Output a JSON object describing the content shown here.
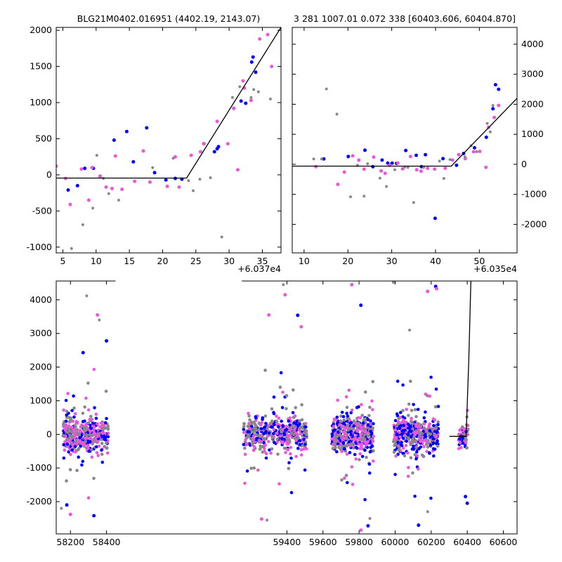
{
  "colors": {
    "grey": "#888888",
    "blue": "#0000ff",
    "pink": "#ee55dd",
    "model": "#000000"
  },
  "chart_data": [
    {
      "id": "zoom-left",
      "type": "scatter",
      "title": "BLG21M0402.016951 (4402.19, 2143.07)",
      "xlim": [
        4,
        37.8
      ],
      "ylim": [
        -1080,
        2040
      ],
      "x_offset_label": "+6.037e4",
      "xticks": [
        5,
        10,
        15,
        20,
        25,
        30,
        35
      ],
      "yticks": [
        -1000,
        -500,
        0,
        500,
        1000,
        1500,
        2000
      ],
      "model": [
        [
          4,
          -45
        ],
        [
          23.6,
          -45
        ],
        [
          37.8,
          2040
        ]
      ],
      "series": [
        {
          "color": "blue",
          "points": [
            [
              5.8,
              -210
            ],
            [
              7.2,
              -150
            ],
            [
              8.3,
              90
            ],
            [
              9.6,
              90
            ],
            [
              10.6,
              -20
            ],
            [
              12.7,
              480
            ],
            [
              14.6,
              600
            ],
            [
              15.6,
              180
            ],
            [
              17.6,
              650
            ],
            [
              18.8,
              30
            ],
            [
              20.5,
              -70
            ],
            [
              21.9,
              -50
            ],
            [
              22.9,
              -60
            ],
            [
              26.2,
              430
            ],
            [
              27.8,
              320
            ],
            [
              28.2,
              360
            ],
            [
              28.4,
              390
            ],
            [
              30.7,
              920
            ],
            [
              31.8,
              1020
            ],
            [
              32.5,
              990
            ],
            [
              33.4,
              1560
            ],
            [
              33.6,
              1630
            ],
            [
              34,
              1420
            ]
          ]
        },
        {
          "color": "pink",
          "points": [
            [
              4,
              120
            ],
            [
              5.4,
              -50
            ],
            [
              6.1,
              -410
            ],
            [
              7.8,
              80
            ],
            [
              8.9,
              -350
            ],
            [
              9.4,
              100
            ],
            [
              10.6,
              -20
            ],
            [
              11.5,
              -170
            ],
            [
              12.4,
              -190
            ],
            [
              12.9,
              260
            ],
            [
              13.9,
              -200
            ],
            [
              15.8,
              -90
            ],
            [
              17.1,
              330
            ],
            [
              18.1,
              -100
            ],
            [
              20.7,
              -160
            ],
            [
              21.9,
              250
            ],
            [
              22.5,
              -170
            ],
            [
              24.3,
              270
            ],
            [
              25.7,
              320
            ],
            [
              26.2,
              430
            ],
            [
              28.2,
              740
            ],
            [
              29.8,
              430
            ],
            [
              30.7,
              920
            ],
            [
              31.3,
              70
            ],
            [
              32.1,
              1300
            ],
            [
              32.3,
              1200
            ],
            [
              33.3,
              1030
            ],
            [
              34.6,
              1880
            ],
            [
              35.8,
              1940
            ],
            [
              36.4,
              1500
            ]
          ]
        },
        {
          "color": "grey",
          "points": [
            [
              6.3,
              -1020
            ],
            [
              8.0,
              -690
            ],
            [
              9.5,
              -460
            ],
            [
              10.1,
              270
            ],
            [
              11.1,
              -50
            ],
            [
              11.9,
              -260
            ],
            [
              13.4,
              -350
            ],
            [
              18.5,
              100
            ],
            [
              21.6,
              230
            ],
            [
              23.9,
              -80
            ],
            [
              24.6,
              -220
            ],
            [
              25.6,
              -60
            ],
            [
              27.2,
              -40
            ],
            [
              28.9,
              -860
            ],
            [
              30.5,
              1070
            ],
            [
              31.6,
              1220
            ],
            [
              33.3,
              1070
            ],
            [
              33.7,
              1180
            ],
            [
              34.4,
              1150
            ],
            [
              36.2,
              1050
            ]
          ]
        }
      ]
    },
    {
      "id": "zoom-right",
      "type": "scatter",
      "title": "3 281 1007.01 0.072 338 [60403.606, 60404.870]",
      "xlim": [
        7.3,
        58.6
      ],
      "ylim": [
        -2950,
        4560
      ],
      "x_offset_label": "+6.035e4",
      "xticks": [
        10,
        20,
        30,
        40,
        50
      ],
      "yticks": [
        -2000,
        -1000,
        0,
        1000,
        2000,
        3000,
        4000
      ],
      "model": [
        [
          7.3,
          -60
        ],
        [
          43.6,
          -60
        ],
        [
          58.6,
          2200
        ]
      ],
      "series": [
        {
          "color": "blue",
          "points": [
            [
              14.5,
              180
            ],
            [
              20.1,
              260
            ],
            [
              23.9,
              470
            ],
            [
              25.7,
              -80
            ],
            [
              27.8,
              140
            ],
            [
              29.1,
              40
            ],
            [
              30.1,
              40
            ],
            [
              31.1,
              30
            ],
            [
              33.2,
              460
            ],
            [
              35.6,
              300
            ],
            [
              36.8,
              -80
            ],
            [
              37.7,
              320
            ],
            [
              39.9,
              -1800
            ],
            [
              41.7,
              190
            ],
            [
              44.8,
              -30
            ],
            [
              46.4,
              360
            ],
            [
              48.9,
              550
            ],
            [
              51.6,
              900
            ],
            [
              53.1,
              1850
            ],
            [
              53.7,
              2650
            ],
            [
              54.4,
              2500
            ]
          ]
        },
        {
          "color": "pink",
          "points": [
            [
              12.7,
              -80
            ],
            [
              17.7,
              -670
            ],
            [
              19.2,
              -260
            ],
            [
              21.1,
              280
            ],
            [
              22.5,
              140
            ],
            [
              23.7,
              -160
            ],
            [
              25.9,
              240
            ],
            [
              27.6,
              -220
            ],
            [
              28.5,
              -300
            ],
            [
              29.5,
              -30
            ],
            [
              31.4,
              40
            ],
            [
              32.5,
              -150
            ],
            [
              34.3,
              260
            ],
            [
              35.7,
              -180
            ],
            [
              36.7,
              -230
            ],
            [
              38.2,
              -130
            ],
            [
              39.8,
              -160
            ],
            [
              42.2,
              -130
            ],
            [
              43.9,
              140
            ],
            [
              45.3,
              320
            ],
            [
              46.8,
              190
            ],
            [
              48.7,
              420
            ],
            [
              50.1,
              430
            ],
            [
              51.5,
              -100
            ],
            [
              52.1,
              1230
            ],
            [
              53.4,
              1560
            ],
            [
              54.4,
              1960
            ]
          ]
        },
        {
          "color": "grey",
          "points": [
            [
              12.2,
              180
            ],
            [
              14,
              180
            ],
            [
              15.1,
              2510
            ],
            [
              17.5,
              1670
            ],
            [
              20.6,
              -1080
            ],
            [
              22.2,
              -30
            ],
            [
              23.7,
              -1060
            ],
            [
              24.5,
              20
            ],
            [
              27.3,
              -460
            ],
            [
              28.8,
              -740
            ],
            [
              30.7,
              -180
            ],
            [
              33,
              -90
            ],
            [
              33.7,
              -100
            ],
            [
              35,
              -1270
            ],
            [
              37.3,
              -100
            ],
            [
              40.9,
              110
            ],
            [
              41.9,
              -470
            ],
            [
              43.3,
              160
            ],
            [
              46.7,
              250
            ],
            [
              48.1,
              620
            ],
            [
              49.4,
              420
            ],
            [
              51.8,
              1360
            ],
            [
              52.5,
              1080
            ],
            [
              53.1,
              1960
            ]
          ]
        }
      ]
    },
    {
      "id": "full",
      "type": "scatter",
      "title": "",
      "xlim": [
        58121,
        60676
      ],
      "ylim": [
        -2960,
        4560
      ],
      "xticks": [
        58200,
        58400,
        59400,
        59600,
        59800,
        60000,
        60200,
        60400,
        60600
      ],
      "yticks": [
        -2000,
        -1000,
        0,
        1000,
        2000,
        3000,
        4000
      ],
      "axis_break": [
        58450,
        59150
      ],
      "model": [
        [
          60301,
          -60
        ],
        [
          60393.6,
          -60
        ],
        [
          60408.6,
          2200
        ],
        [
          60420,
          4560
        ]
      ],
      "seasons": [
        [
          58160,
          58410
        ],
        [
          59160,
          59510
        ],
        [
          59650,
          59880
        ],
        [
          59990,
          60240
        ],
        [
          60352,
          60405
        ]
      ],
      "series": [
        {
          "color": "grey",
          "points": [
            [
              58290,
              4120
            ],
            [
              59380,
              4450
            ],
            [
              59990,
              4520
            ],
            [
              58360,
              3400
            ],
            [
              59860,
              -2500
            ],
            [
              59290,
              -2550
            ],
            [
              60180,
              -2300
            ],
            [
              58150,
              -2200
            ],
            [
              60080,
              3100
            ]
          ]
        },
        {
          "color": "blue",
          "points": [
            [
              58270,
              2430
            ],
            [
              58330,
              -2420
            ],
            [
              58400,
              2780
            ],
            [
              59460,
              3540
            ],
            [
              59810,
              3840
            ],
            [
              59850,
              -2720
            ],
            [
              60225,
              4400
            ],
            [
              60130,
              -2700
            ],
            [
              60390,
              -1850
            ],
            [
              60400,
              -2050
            ],
            [
              58180,
              -2100
            ]
          ]
        },
        {
          "color": "pink",
          "points": [
            [
              58350,
              3550
            ],
            [
              59390,
              4150
            ],
            [
              59760,
              4450
            ],
            [
              59480,
              3200
            ],
            [
              59300,
              3550
            ],
            [
              60230,
              4330
            ],
            [
              60180,
              4250
            ],
            [
              58200,
              -2380
            ],
            [
              59260,
              -2520
            ],
            [
              59810,
              -2850
            ]
          ]
        }
      ]
    }
  ]
}
